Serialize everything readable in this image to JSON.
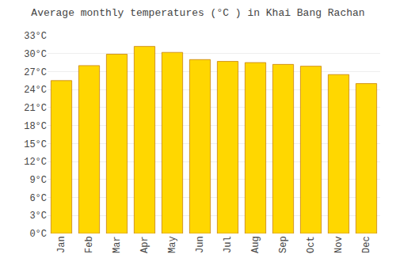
{
  "chart_data": {
    "type": "bar",
    "title": "Average monthly temperatures (°C ) in Khai Bang Rachan",
    "categories": [
      "Jan",
      "Feb",
      "Mar",
      "Apr",
      "May",
      "Jun",
      "Jul",
      "Aug",
      "Sep",
      "Oct",
      "Nov",
      "Dec"
    ],
    "values": [
      25.5,
      28.0,
      29.9,
      31.2,
      30.2,
      29.0,
      28.7,
      28.5,
      28.2,
      27.9,
      26.5,
      25.0
    ],
    "color": "#FFD700",
    "ylim": [
      0,
      33
    ],
    "yticks": [
      {
        "value": 0,
        "label": "0°C"
      },
      {
        "value": 3,
        "label": "3°C"
      },
      {
        "value": 6,
        "label": "6°C"
      },
      {
        "value": 9,
        "label": "9°C"
      },
      {
        "value": 12,
        "label": "12°C"
      },
      {
        "value": 15,
        "label": "15°C"
      },
      {
        "value": 18,
        "label": "18°C"
      },
      {
        "value": 21,
        "label": "21°C"
      },
      {
        "value": 24,
        "label": "24°C"
      },
      {
        "value": 27,
        "label": "27°C"
      },
      {
        "value": 30,
        "label": "30°C"
      },
      {
        "value": 33,
        "label": "33°C"
      }
    ],
    "grid": true
  }
}
